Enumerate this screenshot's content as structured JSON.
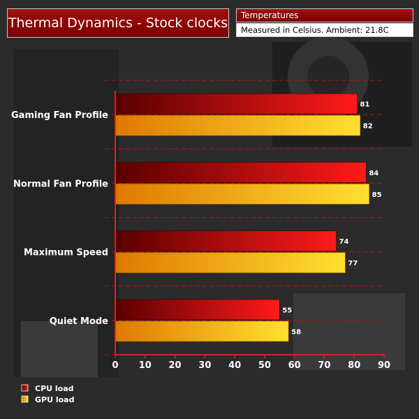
{
  "title": "Thermal Dynamics - Stock clocks",
  "subtitle": "Temperatures",
  "note": "Measured in Celsius. Ambient: 21.8C",
  "colors": {
    "cpu_dark": "#5a0000",
    "cpu_light": "#ff1a1a",
    "gpu_dark": "#e07800",
    "gpu_light": "#ffe030",
    "gridline": "#c01010"
  },
  "chart_data": {
    "type": "bar",
    "orientation": "horizontal",
    "categories": [
      "Gaming Fan Profile",
      "Normal Fan Profile",
      "Maximum Speed",
      "Quiet Mode"
    ],
    "series": [
      {
        "name": "CPU load",
        "values": [
          81,
          84,
          74,
          55
        ]
      },
      {
        "name": "GPU load",
        "values": [
          82,
          85,
          77,
          58
        ]
      }
    ],
    "xlim": [
      0,
      90
    ],
    "xticks": [
      0,
      10,
      20,
      30,
      40,
      50,
      60,
      70,
      80,
      90
    ],
    "grid": true,
    "legend_position": "bottom-left"
  }
}
